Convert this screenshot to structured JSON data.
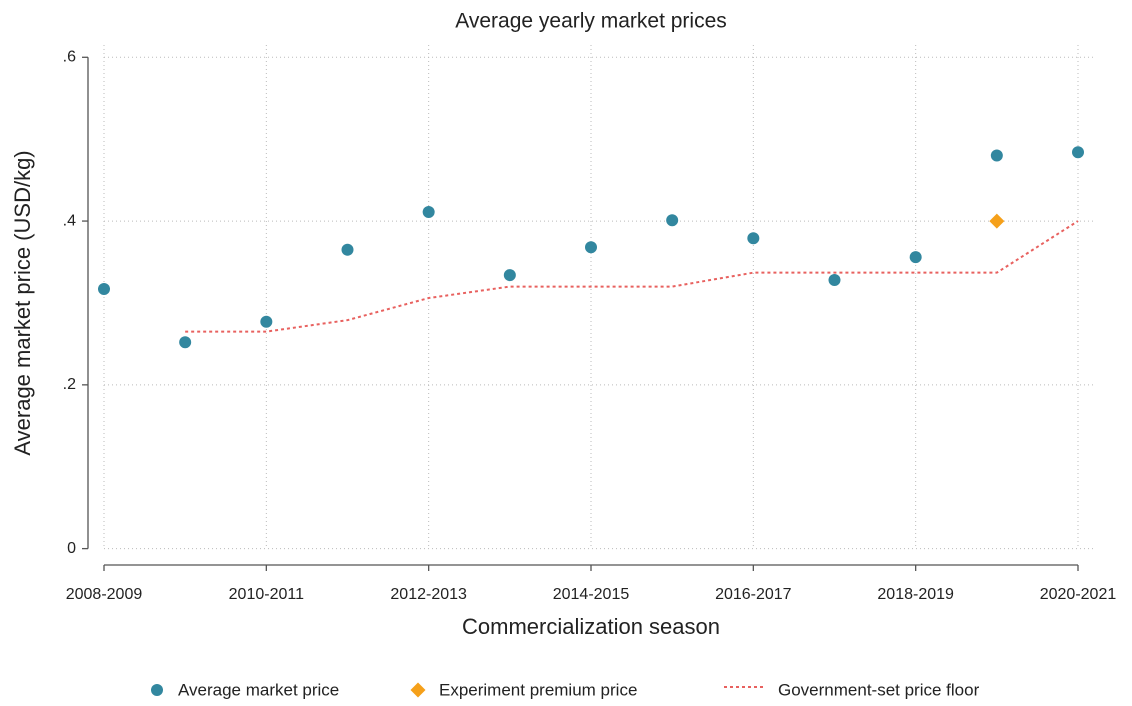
{
  "chart_data": {
    "type": "scatter",
    "title": "Average yearly market prices",
    "xlabel": "Commercialization season",
    "ylabel": "Average market price (USD/kg)",
    "categories": [
      "2008-2009",
      null,
      "2010-2011",
      null,
      "2012-2013",
      null,
      "2014-2015",
      null,
      "2016-2017",
      null,
      "2018-2019",
      null,
      "2020-2021"
    ],
    "series": [
      {
        "name": "Average market price",
        "color": "#32879f",
        "marker": "circle",
        "values": [
          0.317,
          0.252,
          0.277,
          0.365,
          0.411,
          0.334,
          0.368,
          0.401,
          0.379,
          0.328,
          0.356,
          0.48,
          0.484
        ]
      },
      {
        "name": "Experiment premium price",
        "color": "#f5a01a",
        "marker": "diamond",
        "values": [
          null,
          null,
          null,
          null,
          null,
          null,
          null,
          null,
          null,
          null,
          null,
          0.4,
          null
        ]
      },
      {
        "name": "Government-set price floor",
        "color": "#e8615f",
        "line": "dotted",
        "values": [
          null,
          0.265,
          0.265,
          0.279,
          0.306,
          0.32,
          0.32,
          0.32,
          0.337,
          0.337,
          0.337,
          0.337,
          0.4
        ]
      }
    ],
    "ylim": [
      -0.02,
      0.615
    ],
    "yticks": [
      0,
      {
        "value": 0.2,
        "label": ".2"
      },
      {
        "value": 0.4,
        "label": ".4"
      },
      {
        "value": 0.6,
        "label": ".6"
      }
    ],
    "grid": true,
    "legend": "bottom"
  }
}
